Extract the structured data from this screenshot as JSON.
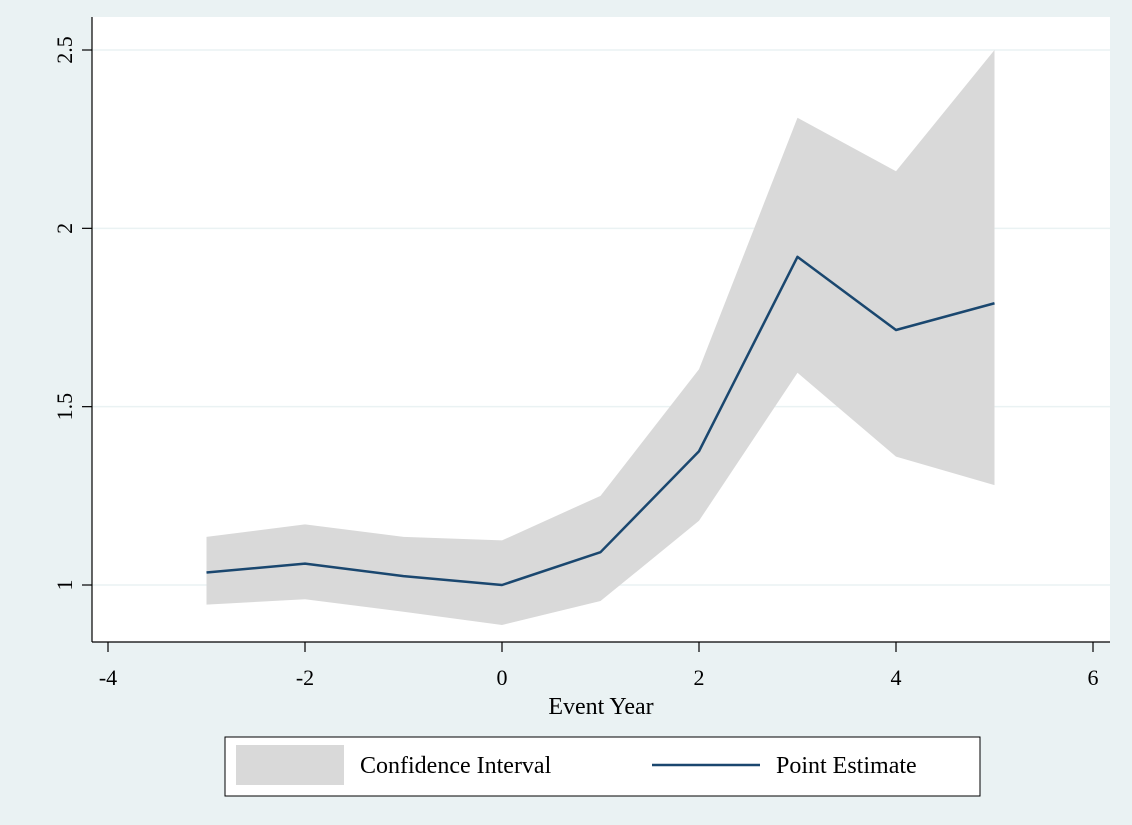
{
  "chart_data": {
    "type": "line",
    "title": "",
    "xlabel": "Event Year",
    "ylabel": "",
    "xlim": [
      -4,
      6
    ],
    "ylim": [
      0.85,
      2.5
    ],
    "x_ticks": [
      "-4",
      "-2",
      "0",
      "2",
      "4",
      "6"
    ],
    "y_ticks": [
      "1",
      "1.5",
      "2",
      "2.5"
    ],
    "grid": "horizontal",
    "legend_position": "bottom",
    "x": [
      -3,
      -2,
      -1,
      0,
      1,
      2,
      3,
      4,
      5
    ],
    "series": [
      {
        "name": "Point Estimate",
        "kind": "line",
        "color": "#1a476f",
        "values": [
          1.035,
          1.06,
          1.025,
          1.0,
          1.092,
          1.375,
          1.92,
          1.715,
          1.79
        ]
      },
      {
        "name": "Confidence Interval",
        "kind": "band",
        "color": "#d9d9d9",
        "lower": [
          0.945,
          0.96,
          0.925,
          0.888,
          0.955,
          1.18,
          1.595,
          1.36,
          1.28
        ],
        "upper": [
          1.135,
          1.17,
          1.135,
          1.125,
          1.25,
          1.605,
          2.31,
          2.16,
          2.5
        ]
      }
    ]
  }
}
